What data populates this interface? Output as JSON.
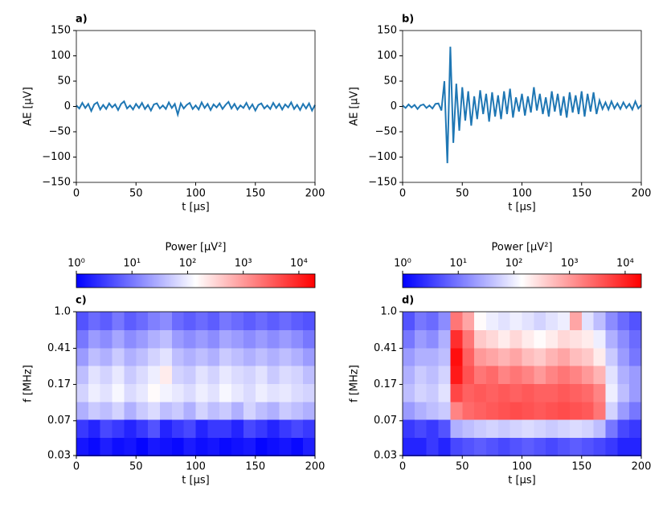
{
  "chart_data": [
    {
      "type": "line",
      "title": "a)",
      "xlabel": "t [μs]",
      "ylabel": "AE [μV]",
      "color": "#1f77b4",
      "xlim": [
        0,
        200
      ],
      "xticks": [
        0,
        50,
        100,
        150,
        200
      ],
      "ylim": [
        -150,
        150
      ],
      "yticks": [
        {
          "value": -150,
          "label": "−150"
        },
        {
          "value": -100,
          "label": "−100"
        },
        {
          "value": -50,
          "label": "−50"
        },
        0,
        50,
        100,
        150
      ],
      "x": [
        0,
        2.5,
        5,
        7.5,
        10,
        12.5,
        15,
        17.5,
        20,
        22.5,
        25,
        27.5,
        30,
        32.5,
        35,
        37.5,
        40,
        42.5,
        45,
        47.5,
        50,
        52.5,
        55,
        57.5,
        60,
        62.5,
        65,
        67.5,
        70,
        72.5,
        75,
        77.5,
        80,
        82.5,
        85,
        87.5,
        90,
        92.5,
        95,
        97.5,
        100,
        102.5,
        105,
        107.5,
        110,
        112.5,
        115,
        117.5,
        120,
        122.5,
        125,
        127.5,
        130,
        132.5,
        135,
        137.5,
        140,
        142.5,
        145,
        147.5,
        150,
        152.5,
        155,
        157.5,
        160,
        162.5,
        165,
        167.5,
        170,
        172.5,
        175,
        177.5,
        180,
        182.5,
        185,
        187.5,
        190,
        192.5,
        195,
        197.5,
        200
      ],
      "values": [
        2,
        -4,
        7,
        -3,
        5,
        -9,
        4,
        8,
        -6,
        3,
        -5,
        6,
        -2,
        4,
        -7,
        5,
        10,
        -4,
        2,
        -6,
        5,
        -3,
        7,
        -5,
        3,
        -8,
        4,
        6,
        -4,
        2,
        -5,
        8,
        -3,
        5,
        -16,
        6,
        -4,
        3,
        7,
        -5,
        2,
        -6,
        8,
        -3,
        5,
        -7,
        4,
        -2,
        6,
        -5,
        3,
        9,
        -4,
        5,
        -6,
        2,
        -3,
        7,
        -5,
        4,
        -8,
        3,
        6,
        -4,
        2,
        -5,
        7,
        -3,
        5,
        -6,
        4,
        -2,
        8,
        -5,
        3,
        -7,
        5,
        -4,
        6,
        -8,
        3
      ]
    },
    {
      "type": "line",
      "title": "b)",
      "xlabel": "t [μs]",
      "ylabel": "AE [μV]",
      "color": "#1f77b4",
      "xlim": [
        0,
        200
      ],
      "xticks": [
        0,
        50,
        100,
        150,
        200
      ],
      "ylim": [
        -150,
        150
      ],
      "yticks": [
        {
          "value": -150,
          "label": "−150"
        },
        {
          "value": -100,
          "label": "−100"
        },
        {
          "value": -50,
          "label": "−50"
        },
        0,
        50,
        100,
        150
      ],
      "x": [
        0,
        2.5,
        5,
        7.5,
        10,
        12.5,
        15,
        17.5,
        20,
        22.5,
        25,
        27.5,
        30,
        32.5,
        35,
        37.5,
        40,
        42.5,
        45,
        47.5,
        50,
        52.5,
        55,
        57.5,
        60,
        62.5,
        65,
        67.5,
        70,
        72.5,
        75,
        77.5,
        80,
        82.5,
        85,
        87.5,
        90,
        92.5,
        95,
        97.5,
        100,
        102.5,
        105,
        107.5,
        110,
        112.5,
        115,
        117.5,
        120,
        122.5,
        125,
        127.5,
        130,
        132.5,
        135,
        137.5,
        140,
        142.5,
        145,
        147.5,
        150,
        152.5,
        155,
        157.5,
        160,
        162.5,
        165,
        167.5,
        170,
        172.5,
        175,
        177.5,
        180,
        182.5,
        185,
        187.5,
        190,
        192.5,
        195,
        197.5,
        200
      ],
      "values": [
        2,
        -3,
        4,
        -2,
        3,
        -5,
        2,
        4,
        -3,
        2,
        -4,
        5,
        6,
        -8,
        50,
        -112,
        118,
        -72,
        45,
        -48,
        38,
        -28,
        30,
        -38,
        20,
        -25,
        32,
        -15,
        25,
        -30,
        28,
        -20,
        22,
        -25,
        30,
        -15,
        35,
        -22,
        18,
        -10,
        25,
        -18,
        20,
        -12,
        38,
        -8,
        25,
        -15,
        18,
        -20,
        30,
        -10,
        25,
        -18,
        20,
        -22,
        28,
        -12,
        22,
        -15,
        30,
        -20,
        25,
        -10,
        28,
        -15,
        12,
        -5,
        8,
        -6,
        10,
        -4,
        6,
        -5,
        8,
        -3,
        5,
        -6,
        10,
        -4,
        3
      ]
    },
    {
      "type": "heatmap",
      "title": "c)",
      "xlabel": "t [μs]",
      "ylabel": "f [MHz]",
      "colorbar_label": "Power [μV²]",
      "xlim": [
        0,
        200
      ],
      "xticks": [
        0,
        50,
        100,
        150,
        200
      ],
      "ylim": [
        0.03,
        1.0
      ],
      "ylog": true,
      "yticks": [
        0.03,
        0.07,
        0.17,
        0.41,
        {
          "value": 1.0,
          "label": "1.0"
        }
      ],
      "clim": [
        1,
        19500
      ],
      "clog": true,
      "cticks": [
        {
          "value": 1,
          "label": "10⁰"
        },
        {
          "value": 10,
          "label": "10¹"
        },
        {
          "value": 100,
          "label": "10²"
        },
        {
          "value": 1000,
          "label": "10³"
        },
        {
          "value": 10000,
          "label": "10⁴"
        }
      ],
      "x": [
        5,
        15,
        25,
        35,
        45,
        55,
        65,
        75,
        85,
        95,
        105,
        115,
        125,
        135,
        145,
        155,
        165,
        175,
        185,
        195
      ],
      "y": [
        0.037,
        0.058,
        0.09,
        0.139,
        0.216,
        0.334,
        0.518,
        0.803
      ],
      "z": [
        [
          1.5,
          1.2,
          1.8,
          1.3,
          1.5,
          1.1,
          1.6,
          1.4,
          1.2,
          1.7,
          1.3,
          1.5,
          1.2,
          1.4,
          1.6,
          1.1,
          1.3,
          1.5,
          1.2,
          1.8
        ],
        [
          3,
          2,
          4,
          3,
          2,
          3,
          5,
          2,
          3,
          4,
          2,
          3,
          3,
          2,
          4,
          3,
          2,
          3,
          4,
          3
        ],
        [
          30,
          50,
          40,
          60,
          30,
          50,
          70,
          40,
          50,
          30,
          60,
          40,
          50,
          30,
          60,
          40,
          30,
          50,
          40,
          30
        ],
        [
          60,
          100,
          80,
          120,
          70,
          90,
          150,
          110,
          90,
          70,
          100,
          80,
          120,
          90,
          70,
          100,
          80,
          90,
          70,
          60
        ],
        [
          40,
          80,
          60,
          90,
          50,
          70,
          100,
          200,
          60,
          50,
          80,
          60,
          90,
          70,
          60,
          80,
          50,
          70,
          60,
          40
        ],
        [
          20,
          40,
          30,
          50,
          30,
          40,
          60,
          80,
          40,
          30,
          40,
          30,
          50,
          40,
          30,
          40,
          30,
          40,
          30,
          20
        ],
        [
          10,
          20,
          15,
          25,
          15,
          20,
          30,
          40,
          20,
          15,
          20,
          15,
          25,
          20,
          15,
          20,
          15,
          20,
          15,
          10
        ],
        [
          5,
          8,
          6,
          10,
          6,
          8,
          12,
          15,
          8,
          6,
          8,
          6,
          10,
          8,
          6,
          8,
          6,
          8,
          6,
          5
        ]
      ]
    },
    {
      "type": "heatmap",
      "title": "d)",
      "xlabel": "t [μs]",
      "ylabel": "f [MHz]",
      "colorbar_label": "Power [μV²]",
      "xlim": [
        0,
        200
      ],
      "xticks": [
        0,
        50,
        100,
        150,
        200
      ],
      "ylim": [
        0.03,
        1.0
      ],
      "ylog": true,
      "yticks": [
        0.03,
        0.07,
        0.17,
        0.41,
        {
          "value": 1.0,
          "label": "1.0"
        }
      ],
      "clim": [
        1,
        19500
      ],
      "clog": true,
      "cticks": [
        {
          "value": 1,
          "label": "10⁰"
        },
        {
          "value": 10,
          "label": "10¹"
        },
        {
          "value": 100,
          "label": "10²"
        },
        {
          "value": 1000,
          "label": "10³"
        },
        {
          "value": 10000,
          "label": "10⁴"
        }
      ],
      "x": [
        5,
        15,
        25,
        35,
        45,
        55,
        65,
        75,
        85,
        95,
        105,
        115,
        125,
        135,
        145,
        155,
        165,
        175,
        185,
        195
      ],
      "y": [
        0.037,
        0.058,
        0.09,
        0.139,
        0.216,
        0.334,
        0.518,
        0.803
      ],
      "z": [
        [
          2,
          2,
          3,
          2,
          4,
          5,
          6,
          5,
          4,
          5,
          6,
          5,
          4,
          5,
          6,
          5,
          4,
          3,
          2,
          2
        ],
        [
          3,
          4,
          3,
          5,
          30,
          40,
          50,
          60,
          50,
          60,
          70,
          60,
          50,
          60,
          70,
          60,
          40,
          10,
          4,
          3
        ],
        [
          20,
          30,
          40,
          50,
          1500,
          2500,
          3000,
          3500,
          4000,
          4500,
          4000,
          3500,
          4000,
          4500,
          4000,
          3500,
          2000,
          60,
          20,
          10
        ],
        [
          40,
          60,
          50,
          80,
          5000,
          3000,
          3500,
          3000,
          3500,
          3000,
          3500,
          3000,
          3000,
          3500,
          3000,
          2500,
          1500,
          100,
          40,
          20
        ],
        [
          30,
          50,
          40,
          60,
          12000,
          4000,
          2000,
          2500,
          1500,
          2000,
          1500,
          1000,
          1500,
          2000,
          1500,
          1000,
          600,
          80,
          30,
          20
        ],
        [
          20,
          30,
          30,
          40,
          15000,
          3000,
          1000,
          800,
          600,
          800,
          500,
          400,
          600,
          800,
          500,
          400,
          200,
          50,
          20,
          10
        ],
        [
          10,
          20,
          15,
          30,
          8000,
          2000,
          400,
          300,
          200,
          300,
          200,
          150,
          200,
          300,
          250,
          200,
          100,
          30,
          15,
          8
        ],
        [
          5,
          10,
          8,
          15,
          2000,
          800,
          150,
          100,
          80,
          100,
          80,
          60,
          80,
          100,
          800,
          80,
          40,
          15,
          8,
          5
        ]
      ]
    }
  ]
}
